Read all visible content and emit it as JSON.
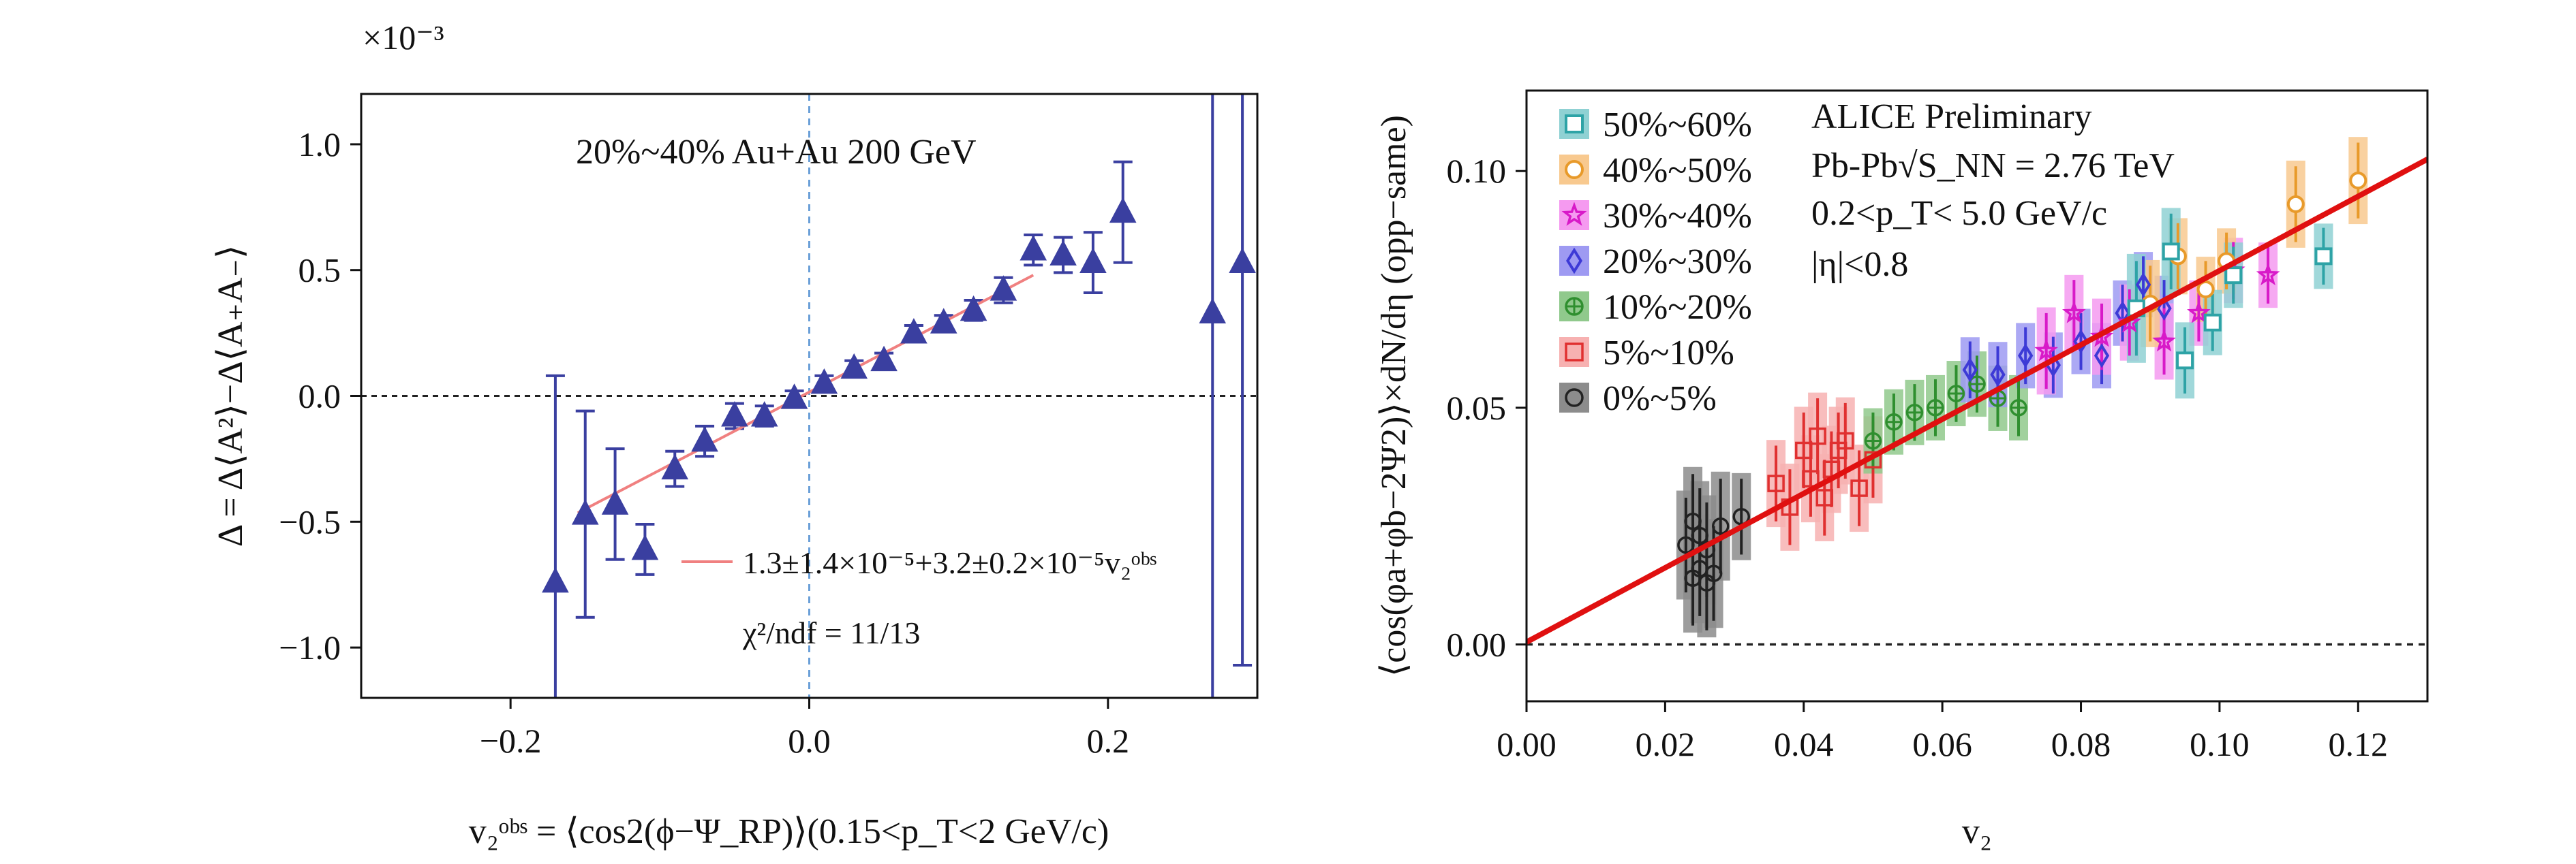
{
  "chart_data": [
    {
      "type": "scatter",
      "title": "",
      "annotation": "20%~40% Au+Au 200 GeV",
      "exponent_label": "×10⁻³",
      "xlabel": "v₂ᵒᵇˢ = ⟨cos2(ϕ−Ψ_RP)⟩(0.15<p_T<2 GeV/c)",
      "ylabel": "Δ = Δ⟨A²⟩−Δ⟨A₊A₋⟩",
      "xlim": [
        -0.3,
        0.3
      ],
      "ylim": [
        -1.2,
        1.2
      ],
      "xticks": [
        -0.2,
        0.0,
        0.2
      ],
      "xtick_labels": [
        "−0.2",
        "0.0",
        "0.2"
      ],
      "yticks": [
        1.0,
        0.5,
        0.0,
        -0.5,
        -1.0
      ],
      "ytick_labels": [
        "1.0",
        "0.5",
        "0.0",
        "−0.5",
        "−1.0"
      ],
      "grid": false,
      "reference_lines": {
        "horizontal_y": 0.0,
        "vertical_x": 0.0
      },
      "legend": {
        "placement": "bottom-right",
        "fit_label": "1.3±1.4×10⁻⁵+3.2±0.2×10⁻⁵v₂ᵒᵇˢ",
        "chi2_label": "χ²/ndf = 11/13"
      },
      "fit_line": {
        "x": [
          -0.155,
          0.15
        ],
        "y": [
          -0.465,
          0.48
        ],
        "color": "#f08080"
      },
      "series": [
        {
          "color": "#3a3fa0",
          "marker": "triangle",
          "points": [
            {
              "x": -0.17,
              "y": -0.74,
              "err": 0.82
            },
            {
              "x": -0.15,
              "y": -0.47,
              "err": 0.41
            },
            {
              "x": -0.13,
              "y": -0.43,
              "err": 0.22
            },
            {
              "x": -0.11,
              "y": -0.61,
              "err": 0.1
            },
            {
              "x": -0.09,
              "y": -0.29,
              "err": 0.07
            },
            {
              "x": -0.07,
              "y": -0.18,
              "err": 0.06
            },
            {
              "x": -0.05,
              "y": -0.08,
              "err": 0.05
            },
            {
              "x": -0.03,
              "y": -0.08,
              "err": 0.04
            },
            {
              "x": -0.01,
              "y": -0.01,
              "err": 0.03
            },
            {
              "x": 0.01,
              "y": 0.05,
              "err": 0.03
            },
            {
              "x": 0.03,
              "y": 0.11,
              "err": 0.03
            },
            {
              "x": 0.05,
              "y": 0.14,
              "err": 0.03
            },
            {
              "x": 0.07,
              "y": 0.25,
              "err": 0.03
            },
            {
              "x": 0.09,
              "y": 0.29,
              "err": 0.03
            },
            {
              "x": 0.11,
              "y": 0.34,
              "err": 0.04
            },
            {
              "x": 0.13,
              "y": 0.42,
              "err": 0.05
            },
            {
              "x": 0.15,
              "y": 0.58,
              "err": 0.06
            },
            {
              "x": 0.17,
              "y": 0.56,
              "err": 0.07
            },
            {
              "x": 0.19,
              "y": 0.53,
              "err": 0.12
            },
            {
              "x": 0.21,
              "y": 0.73,
              "err": 0.2
            },
            {
              "x": 0.27,
              "y": 0.33,
              "err": 1.6
            },
            {
              "x": 0.29,
              "y": 0.53,
              "err": 1.6
            }
          ]
        }
      ]
    },
    {
      "type": "scatter",
      "title": "",
      "xlabel": "v₂",
      "ylabel": "⟨cos(φa+φb−2Ψ2)⟩×dN/dη (opp−same)",
      "xlim": [
        0.0,
        0.13
      ],
      "ylim": [
        -0.012,
        0.117
      ],
      "xticks": [
        0.0,
        0.02,
        0.04,
        0.06,
        0.08,
        0.1,
        0.12
      ],
      "xtick_labels": [
        "0.00",
        "0.02",
        "0.04",
        "0.06",
        "0.08",
        "0.10",
        "0.12"
      ],
      "yticks": [
        0.0,
        0.05,
        0.1
      ],
      "ytick_labels": [
        "0.00",
        "0.05",
        "0.10"
      ],
      "grid": false,
      "reference_lines": {
        "horizontal_y": 0.0
      },
      "annotations": [
        "ALICE Preliminary",
        "Pb-Pb√S_NN = 2.76 TeV",
        "0.2<p_T< 5.0 GeV/c",
        "|η|<0.8"
      ],
      "legend": {
        "placement": "top-left"
      },
      "fit_line": {
        "x": [
          0.0,
          0.13
        ],
        "y": [
          0.0005,
          0.1025
        ],
        "color": "#e01010"
      },
      "series": [
        {
          "name": "50%~60%",
          "color": "#2ea3a6",
          "box_color": "#8fd1d3",
          "marker": "square",
          "points": [
            {
              "x": 0.088,
              "y": 0.071,
              "err": 0.01
            },
            {
              "x": 0.093,
              "y": 0.083,
              "err": 0.008
            },
            {
              "x": 0.095,
              "y": 0.06,
              "err": 0.007
            },
            {
              "x": 0.099,
              "y": 0.068,
              "err": 0.006
            },
            {
              "x": 0.102,
              "y": 0.078,
              "err": 0.006
            },
            {
              "x": 0.115,
              "y": 0.082,
              "err": 0.006
            }
          ]
        },
        {
          "name": "40%~50%",
          "color": "#e89a2a",
          "box_color": "#f8c98f",
          "marker": "circle",
          "points": [
            {
              "x": 0.09,
              "y": 0.072,
              "err": 0.008
            },
            {
              "x": 0.094,
              "y": 0.082,
              "err": 0.007
            },
            {
              "x": 0.098,
              "y": 0.075,
              "err": 0.006
            },
            {
              "x": 0.101,
              "y": 0.081,
              "err": 0.006
            },
            {
              "x": 0.111,
              "y": 0.093,
              "err": 0.008
            },
            {
              "x": 0.12,
              "y": 0.098,
              "err": 0.008
            }
          ]
        },
        {
          "name": "30%~40%",
          "color": "#d81ac8",
          "box_color": "#f59af0",
          "marker": "star",
          "points": [
            {
              "x": 0.075,
              "y": 0.062,
              "err": 0.008
            },
            {
              "x": 0.079,
              "y": 0.07,
              "err": 0.007
            },
            {
              "x": 0.083,
              "y": 0.065,
              "err": 0.007
            },
            {
              "x": 0.087,
              "y": 0.068,
              "err": 0.007
            },
            {
              "x": 0.092,
              "y": 0.064,
              "err": 0.007
            },
            {
              "x": 0.097,
              "y": 0.07,
              "err": 0.006
            },
            {
              "x": 0.102,
              "y": 0.079,
              "err": 0.006
            },
            {
              "x": 0.107,
              "y": 0.078,
              "err": 0.006
            }
          ]
        },
        {
          "name": "20%~30%",
          "color": "#3d3ad6",
          "box_color": "#9e9af2",
          "marker": "diamond",
          "points": [
            {
              "x": 0.064,
              "y": 0.058,
              "err": 0.006
            },
            {
              "x": 0.068,
              "y": 0.057,
              "err": 0.006
            },
            {
              "x": 0.072,
              "y": 0.061,
              "err": 0.006
            },
            {
              "x": 0.076,
              "y": 0.059,
              "err": 0.006
            },
            {
              "x": 0.08,
              "y": 0.064,
              "err": 0.006
            },
            {
              "x": 0.083,
              "y": 0.061,
              "err": 0.006
            },
            {
              "x": 0.086,
              "y": 0.07,
              "err": 0.006
            },
            {
              "x": 0.089,
              "y": 0.076,
              "err": 0.006
            },
            {
              "x": 0.092,
              "y": 0.071,
              "err": 0.006
            }
          ]
        },
        {
          "name": "10%~20%",
          "color": "#2f8f2f",
          "box_color": "#90c98c",
          "marker": "cross-circle",
          "points": [
            {
              "x": 0.05,
              "y": 0.043,
              "err": 0.006
            },
            {
              "x": 0.053,
              "y": 0.047,
              "err": 0.006
            },
            {
              "x": 0.056,
              "y": 0.049,
              "err": 0.006
            },
            {
              "x": 0.059,
              "y": 0.05,
              "err": 0.006
            },
            {
              "x": 0.062,
              "y": 0.053,
              "err": 0.006
            },
            {
              "x": 0.065,
              "y": 0.055,
              "err": 0.006
            },
            {
              "x": 0.068,
              "y": 0.052,
              "err": 0.006
            },
            {
              "x": 0.071,
              "y": 0.05,
              "err": 0.006
            }
          ]
        },
        {
          "name": "5%~10%",
          "color": "#e03030",
          "box_color": "#f7b1b1",
          "marker": "square-open",
          "points": [
            {
              "x": 0.036,
              "y": 0.034,
              "err": 0.008
            },
            {
              "x": 0.038,
              "y": 0.029,
              "err": 0.008
            },
            {
              "x": 0.04,
              "y": 0.041,
              "err": 0.008
            },
            {
              "x": 0.041,
              "y": 0.035,
              "err": 0.008
            },
            {
              "x": 0.042,
              "y": 0.044,
              "err": 0.008
            },
            {
              "x": 0.043,
              "y": 0.031,
              "err": 0.008
            },
            {
              "x": 0.044,
              "y": 0.037,
              "err": 0.008
            },
            {
              "x": 0.045,
              "y": 0.041,
              "err": 0.008
            },
            {
              "x": 0.046,
              "y": 0.043,
              "err": 0.008
            },
            {
              "x": 0.048,
              "y": 0.033,
              "err": 0.008
            },
            {
              "x": 0.05,
              "y": 0.039,
              "err": 0.008
            }
          ]
        },
        {
          "name": "0%~5%",
          "color": "#222222",
          "box_color": "#8c8c8c",
          "marker": "circle-open",
          "points": [
            {
              "x": 0.023,
              "y": 0.021,
              "err": 0.01
            },
            {
              "x": 0.024,
              "y": 0.014,
              "err": 0.01
            },
            {
              "x": 0.024,
              "y": 0.026,
              "err": 0.01
            },
            {
              "x": 0.025,
              "y": 0.016,
              "err": 0.01
            },
            {
              "x": 0.025,
              "y": 0.023,
              "err": 0.01
            },
            {
              "x": 0.026,
              "y": 0.013,
              "err": 0.01
            },
            {
              "x": 0.026,
              "y": 0.02,
              "err": 0.01
            },
            {
              "x": 0.027,
              "y": 0.015,
              "err": 0.01
            },
            {
              "x": 0.028,
              "y": 0.025,
              "err": 0.01
            },
            {
              "x": 0.031,
              "y": 0.027,
              "err": 0.008
            }
          ]
        }
      ]
    }
  ]
}
